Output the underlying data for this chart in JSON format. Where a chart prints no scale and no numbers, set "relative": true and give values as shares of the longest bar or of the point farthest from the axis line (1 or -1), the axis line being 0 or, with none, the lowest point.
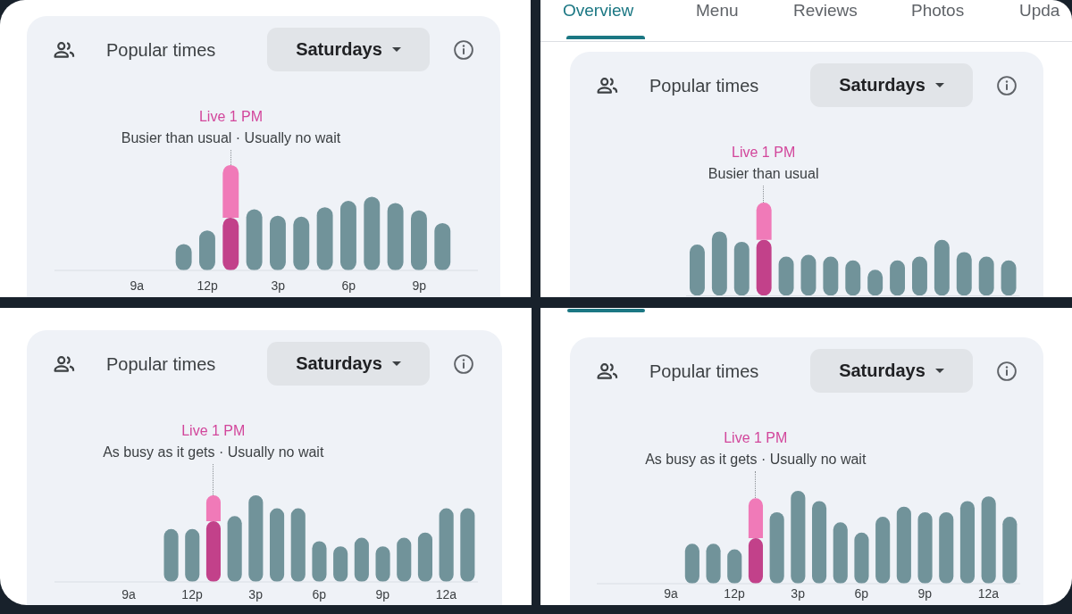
{
  "chart_data": [
    {
      "type": "bar",
      "title": "Popular times",
      "subtitle": "Saturdays",
      "annotations": [
        "Live 1 PM",
        "Busier than usual · Usually no wait"
      ],
      "relative": true,
      "stacked": true,
      "categories": [
        null,
        null,
        null,
        "9a",
        null,
        null,
        "12p",
        null,
        null,
        "3p",
        null,
        null,
        "6p",
        null,
        null,
        "9p",
        null,
        null
      ],
      "series": [
        {
          "values": [
            null,
            null,
            null,
            null,
            null,
            0.25,
            0.38,
            0.5,
            0.58,
            0.52,
            0.51,
            0.6,
            0.66,
            0.7,
            0.64,
            0.57,
            0.45,
            null
          ],
          "colors": [
            null,
            null,
            null,
            null,
            null,
            "#71939a",
            "#71939a",
            "#c2418a",
            "#71939a",
            "#71939a",
            "#71939a",
            "#71939a",
            "#71939a",
            "#71939a",
            "#71939a",
            "#71939a",
            "#71939a",
            null
          ]
        },
        {
          "values": [
            null,
            null,
            null,
            null,
            null,
            null,
            null,
            0.5,
            null,
            null,
            null,
            null,
            null,
            null,
            null,
            null,
            null,
            null
          ],
          "color": "#f07ab8"
        }
      ]
    },
    {
      "type": "other",
      "annotations": [
        "Overview",
        "Menu",
        "Reviews",
        "Photos",
        "Upda"
      ]
    },
    {
      "type": "bar",
      "title": "Popular times",
      "subtitle": "Saturdays",
      "annotations": [
        "Live 1 PM",
        "Busier than usual"
      ],
      "relative": true,
      "stacked": true,
      "categories": [
        null,
        null,
        null,
        null,
        null,
        null,
        null,
        null,
        null,
        null,
        null,
        null,
        null,
        null,
        null
      ],
      "series": [
        {
          "values": [
            0.55,
            0.69,
            0.58,
            0.6,
            0.42,
            0.44,
            0.42,
            0.38,
            0.28,
            0.38,
            0.42,
            0.6,
            0.47,
            0.42,
            0.38
          ],
          "colors": [
            "#71939a",
            "#71939a",
            "#71939a",
            "#c2418a",
            "#71939a",
            "#71939a",
            "#71939a",
            "#71939a",
            "#71939a",
            "#71939a",
            "#71939a",
            "#71939a",
            "#71939a",
            "#71939a",
            "#71939a"
          ]
        },
        {
          "values": [
            null,
            null,
            null,
            0.4,
            null,
            null,
            null,
            null,
            null,
            null,
            null,
            null,
            null,
            null,
            null
          ],
          "color": "#f07ab8"
        }
      ]
    },
    {
      "type": "bar",
      "title": "Popular times",
      "subtitle": "Saturdays",
      "annotations": [
        "Live 1 PM",
        "As busy as it gets · Usually no wait"
      ],
      "relative": true,
      "stacked": true,
      "categories": [
        null,
        null,
        null,
        "9a",
        null,
        null,
        "12p",
        null,
        null,
        "3p",
        null,
        null,
        "6p",
        null,
        null,
        "9p",
        null,
        null,
        "12a",
        null
      ],
      "series": [
        {
          "values": [
            null,
            null,
            null,
            null,
            null,
            0.61,
            0.61,
            0.7,
            0.76,
            1.0,
            0.85,
            0.85,
            0.47,
            0.41,
            0.51,
            0.41,
            0.51,
            0.57,
            0.85,
            0.85
          ],
          "colors": [
            null,
            null,
            null,
            null,
            null,
            "#71939a",
            "#71939a",
            "#c2418a",
            "#71939a",
            "#71939a",
            "#71939a",
            "#71939a",
            "#71939a",
            "#71939a",
            "#71939a",
            "#71939a",
            "#71939a",
            "#71939a",
            "#71939a",
            "#71939a"
          ]
        },
        {
          "values": [
            null,
            null,
            null,
            null,
            null,
            null,
            null,
            0.3,
            null,
            null,
            null,
            null,
            null,
            null,
            null,
            null,
            null,
            null,
            null,
            null
          ],
          "color": "#f07ab8"
        }
      ]
    },
    {
      "type": "bar",
      "title": "Popular times",
      "subtitle": "Saturdays",
      "annotations": [
        "Live 1 PM",
        "As busy as it gets · Usually no wait"
      ],
      "relative": true,
      "stacked": true,
      "categories": [
        null,
        null,
        null,
        "9a",
        null,
        null,
        "12p",
        null,
        null,
        "3p",
        null,
        null,
        "6p",
        null,
        null,
        "9p",
        null,
        null,
        "12a",
        null
      ],
      "series": [
        {
          "values": [
            null,
            null,
            null,
            null,
            0.43,
            0.43,
            0.37,
            0.49,
            0.77,
            1.0,
            0.89,
            0.66,
            0.55,
            0.72,
            0.83,
            0.77,
            0.77,
            0.89,
            0.94,
            0.72
          ],
          "colors": [
            null,
            null,
            null,
            null,
            "#71939a",
            "#71939a",
            "#71939a",
            "#c2418a",
            "#71939a",
            "#71939a",
            "#71939a",
            "#71939a",
            "#71939a",
            "#71939a",
            "#71939a",
            "#71939a",
            "#71939a",
            "#71939a",
            "#71939a",
            "#71939a"
          ]
        },
        {
          "values": [
            null,
            null,
            null,
            null,
            null,
            null,
            null,
            0.43,
            null,
            null,
            null,
            null,
            null,
            null,
            null,
            null,
            null,
            null,
            null,
            null
          ],
          "color": "#f07ab8"
        }
      ]
    }
  ]
}
